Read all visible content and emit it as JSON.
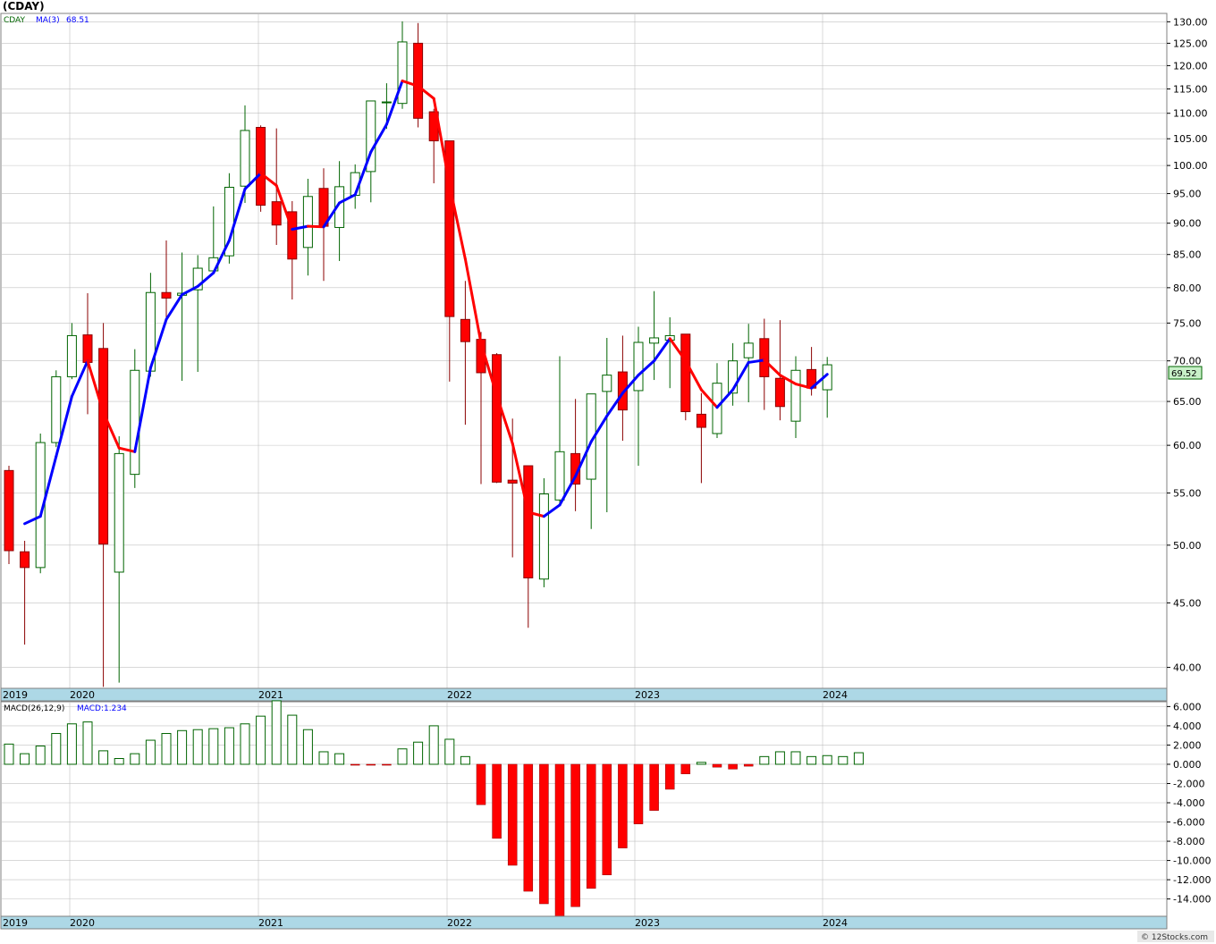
{
  "title": "(CDAY)",
  "watermark": "© 12Stocks.com",
  "price_panel": {
    "legend_symbol": "CDAY",
    "legend_ma_label": "MA(3)",
    "legend_ma_value": "68.51",
    "last_price_tag": "69.52",
    "y_ticks": [
      "130.00",
      "125.00",
      "120.00",
      "115.00",
      "110.00",
      "105.00",
      "100.00",
      "95.00",
      "90.00",
      "85.00",
      "80.00",
      "75.00",
      "70.00",
      "65.00",
      "60.00",
      "55.00",
      "50.00",
      "45.00",
      "40.00"
    ],
    "year_labels": [
      "2019",
      "2020",
      "2021",
      "2022",
      "2023",
      "2024"
    ]
  },
  "macd_panel": {
    "legend_label": "MACD(26,12,9)",
    "legend_value": "MACD:1.234",
    "y_ticks": [
      "6.000",
      "4.000",
      "2.000",
      "0.000",
      "-2.000",
      "-4.000",
      "-6.000",
      "-8.000",
      "-10.000",
      "-12.000",
      "-14.000"
    ],
    "year_labels": [
      "2019",
      "2020",
      "2021",
      "2022",
      "2023",
      "2024"
    ]
  },
  "colors": {
    "up_candle": "#ffffff",
    "up_outline": "#006400",
    "down_candle": "#ff0000",
    "ma_up": "#0000ff",
    "ma_down": "#ff0000",
    "axis_band": "#add8e6",
    "grid": "#c0c0c0",
    "price_tag_bg": "#c8f0c8"
  },
  "chart_data": [
    {
      "type": "candlestick",
      "scale": "log",
      "ylim": [
        38.5,
        132
      ],
      "x_labels": [
        "2019",
        "2020",
        "2021",
        "2022",
        "2023",
        "2024"
      ],
      "ohlc": [
        [
          57.3,
          57.8,
          48.3,
          49.5
        ],
        [
          49.4,
          50.4,
          41.7,
          48.0
        ],
        [
          48.0,
          61.3,
          47.5,
          60.3
        ],
        [
          60.3,
          68.8,
          59.8,
          68.0
        ],
        [
          68.0,
          75.0,
          67.7,
          73.3
        ],
        [
          73.4,
          79.2,
          63.5,
          69.8
        ],
        [
          71.6,
          75.0,
          38.6,
          50.1
        ],
        [
          47.6,
          61.0,
          38.9,
          59.1
        ],
        [
          56.9,
          71.5,
          55.5,
          68.8
        ],
        [
          68.7,
          82.2,
          68.0,
          79.3
        ],
        [
          79.3,
          87.2,
          75.0,
          78.5
        ],
        [
          78.9,
          85.3,
          67.5,
          79.2
        ],
        [
          79.7,
          84.9,
          68.6,
          82.9
        ],
        [
          82.5,
          92.8,
          83.0,
          84.5
        ],
        [
          84.8,
          98.6,
          83.6,
          96.1
        ],
        [
          96.3,
          111.6,
          93.4,
          106.6
        ],
        [
          107.2,
          107.6,
          91.9,
          93.0
        ],
        [
          93.6,
          107.0,
          86.5,
          89.7
        ],
        [
          91.9,
          93.7,
          78.3,
          84.3
        ],
        [
          86.1,
          97.6,
          81.8,
          94.5
        ],
        [
          95.9,
          99.5,
          81.0,
          89.5
        ],
        [
          89.3,
          100.8,
          84.0,
          96.2
        ],
        [
          94.7,
          100.2,
          92.4,
          98.7
        ],
        [
          98.9,
          112.5,
          93.5,
          112.5
        ],
        [
          112.3,
          116.2,
          106.9,
          112.3
        ],
        [
          112.0,
          130.1,
          110.9,
          125.3
        ],
        [
          125.0,
          129.7,
          107.2,
          109.0
        ],
        [
          110.3,
          110.9,
          96.8,
          104.6
        ],
        [
          104.6,
          104.3,
          67.4,
          75.9
        ],
        [
          75.5,
          81.0,
          62.3,
          72.5
        ],
        [
          72.8,
          73.8,
          55.9,
          68.5
        ],
        [
          70.8,
          71.0,
          56.0,
          56.1
        ],
        [
          56.3,
          63.0,
          48.9,
          56.0
        ],
        [
          57.8,
          57.8,
          43.0,
          47.1
        ],
        [
          47.0,
          56.5,
          46.3,
          54.9
        ],
        [
          54.3,
          70.6,
          54.0,
          59.3
        ],
        [
          59.1,
          65.3,
          53.2,
          55.9
        ],
        [
          56.4,
          65.6,
          51.5,
          65.9
        ],
        [
          66.2,
          73.0,
          53.1,
          68.2
        ],
        [
          68.6,
          73.3,
          60.5,
          64.0
        ],
        [
          66.3,
          74.5,
          57.8,
          72.4
        ],
        [
          72.3,
          79.5,
          67.6,
          73.0
        ],
        [
          72.7,
          75.8,
          66.6,
          73.3
        ],
        [
          73.5,
          73.5,
          62.8,
          63.8
        ],
        [
          63.5,
          66.0,
          56.0,
          62.0
        ],
        [
          61.3,
          69.7,
          60.8,
          67.2
        ],
        [
          66.0,
          72.3,
          64.5,
          70.0
        ],
        [
          70.4,
          74.9,
          64.9,
          72.3
        ],
        [
          72.9,
          75.6,
          64.0,
          68.0
        ],
        [
          67.8,
          75.4,
          62.8,
          64.4
        ],
        [
          62.7,
          70.6,
          60.8,
          68.8
        ],
        [
          68.9,
          71.8,
          65.7,
          66.6
        ],
        [
          66.4,
          70.5,
          63.1,
          69.5
        ]
      ],
      "ma3": [
        null,
        52.0,
        52.7,
        58.8,
        65.6,
        70.0,
        63.7,
        59.7,
        59.3,
        69.1,
        75.5,
        79.0,
        80.2,
        82.2,
        87.2,
        95.8,
        98.6,
        96.4,
        89.0,
        89.5,
        89.4,
        93.4,
        94.8,
        102.5,
        107.8,
        116.7,
        115.6,
        113.0,
        96.5,
        84.3,
        72.3,
        65.7,
        60.2,
        53.1,
        52.7,
        53.8,
        56.7,
        60.4,
        63.3,
        66.0,
        68.2,
        70.0,
        72.9,
        70.0,
        66.4,
        64.3,
        66.4,
        69.8,
        70.1,
        68.2,
        67.1,
        66.6,
        68.3
      ]
    },
    {
      "type": "bar",
      "name": "MACD(26,12,9)",
      "ylim": [
        -15.8,
        6.5
      ],
      "values": [
        2.1,
        1.1,
        1.9,
        3.2,
        4.2,
        4.4,
        1.4,
        0.6,
        1.1,
        2.5,
        3.2,
        3.5,
        3.6,
        3.7,
        3.8,
        4.2,
        5.0,
        6.6,
        5.1,
        3.6,
        1.3,
        1.1,
        -0.1,
        -0.1,
        -0.1,
        1.6,
        2.3,
        4.0,
        2.6,
        0.8,
        -4.2,
        -7.7,
        -10.5,
        -13.2,
        -14.5,
        -16.0,
        -14.8,
        -12.9,
        -11.5,
        -8.7,
        -6.2,
        -4.8,
        -2.6,
        -1.0,
        0.2,
        -0.3,
        -0.5,
        -0.2,
        0.8,
        1.3,
        1.3,
        0.8,
        0.9,
        0.8,
        1.2
      ]
    }
  ]
}
